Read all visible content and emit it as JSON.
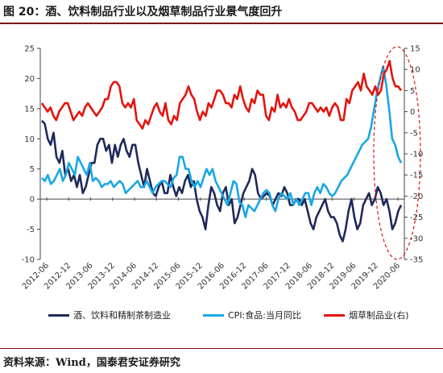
{
  "title": "图 20：酒、饮料制品行业以及烟草制品行业景气度回升",
  "source": "资料来源：Wind，国泰君安证券研究",
  "colors": {
    "accent": "#7a0f14",
    "series_navy": "#1f2a5a",
    "series_light_blue": "#19a7e3",
    "series_red": "#e3140e",
    "ellipse": "#d9161a"
  },
  "chart_data": {
    "type": "line",
    "title": "",
    "xlabel": "",
    "ylabel": "",
    "x_tick_labels": [
      "2012-06",
      "2012-12",
      "2013-06",
      "2013-12",
      "2014-06",
      "2014-12",
      "2015-06",
      "2015-12",
      "2016-06",
      "2016-12",
      "2017-06",
      "2017-12",
      "2018-06",
      "2018-12",
      "2019-06",
      "2019-12",
      "2020-06"
    ],
    "y_left_ticks": [
      "25",
      "20",
      "15",
      "10",
      "5",
      "0",
      "-5",
      "-10"
    ],
    "y_right_ticks": [
      "15",
      "10",
      "5",
      "0",
      "-5",
      "-10",
      "-15",
      "-20",
      "-25",
      "-30",
      "-35"
    ],
    "ylim_left": [
      -10,
      25
    ],
    "ylim_right": [
      -35,
      15
    ],
    "legend_position": "bottom",
    "annotation": "dashed red ellipse around 2019-12 to 2020-06",
    "series": [
      {
        "name": "酒、饮料和精制茶制造业",
        "axis": "left",
        "color": "#1f2a5a",
        "values": [
          13,
          12.5,
          10,
          9,
          11,
          7,
          6,
          8,
          4,
          5,
          3,
          4,
          2,
          4,
          1,
          2,
          4,
          6,
          6,
          9,
          10,
          10,
          8,
          9,
          6,
          9,
          7,
          9,
          10,
          8,
          7,
          9,
          9,
          6,
          4,
          2,
          5,
          3,
          1,
          0.5,
          2,
          3,
          1,
          1,
          4,
          2,
          0.5,
          2,
          1,
          3,
          4,
          2,
          3,
          0,
          -2,
          -3,
          -5,
          -1,
          2,
          1,
          -1,
          -2,
          1,
          2,
          -1,
          0,
          -4,
          -3,
          -1,
          1,
          2,
          3,
          5,
          4,
          1,
          0,
          0.5,
          1,
          0.5,
          -1,
          0,
          1,
          0.5,
          2,
          1,
          -1,
          -1,
          0,
          0,
          -1,
          0,
          -2,
          -4,
          -5,
          -3,
          -2,
          -1,
          0,
          -2,
          -3,
          -3,
          -4,
          -6,
          -7,
          -5,
          -2,
          0,
          -3,
          -5,
          -4,
          -1,
          0,
          1,
          -1,
          0,
          2,
          1,
          -1,
          0,
          -2,
          -5,
          -4,
          -2,
          -1
        ]
      },
      {
        "name": "CPI:食品:当月同比",
        "axis": "left",
        "color": "#19a7e3",
        "values": [
          3.5,
          3,
          4,
          2.5,
          3,
          4,
          5,
          3,
          4,
          6,
          5,
          4,
          7,
          6,
          5,
          4,
          6,
          3,
          3.5,
          3,
          2,
          2.5,
          2.5,
          3,
          2,
          2.5,
          3,
          2.5,
          1,
          1.5,
          2,
          2.5,
          3,
          2,
          2,
          3,
          2,
          1,
          2,
          2.5,
          3,
          3,
          2.5,
          2,
          3.5,
          4,
          7,
          7,
          5,
          5,
          3,
          2,
          3,
          2,
          3.5,
          5,
          4,
          5,
          3,
          2,
          1,
          0,
          -1,
          1,
          3,
          2.5,
          -0.5,
          -1,
          -3,
          -1,
          -1.5,
          -2,
          -1,
          0,
          1,
          1.5,
          1,
          -1,
          -2,
          0,
          1,
          0.5,
          0,
          1,
          -1,
          0,
          -1,
          0,
          1,
          1,
          -1,
          1,
          2,
          1,
          2.5,
          2,
          1,
          0.5,
          1,
          2,
          3,
          3.5,
          4,
          5,
          6,
          7,
          8,
          9,
          9.5,
          10,
          12,
          15,
          18,
          20,
          22,
          19,
          15,
          10,
          9,
          7,
          6
        ]
      },
      {
        "name": "烟草制品业(右)",
        "axis": "right",
        "color": "#e3140e",
        "values": [
          2,
          1,
          0,
          1,
          -1,
          -2,
          0,
          1,
          2,
          2,
          0,
          -2,
          -1,
          0,
          -1,
          1,
          2,
          1,
          0,
          -1,
          0,
          1,
          3,
          3,
          6,
          7,
          7,
          6,
          2,
          1,
          2,
          1,
          3,
          -2,
          -3,
          -4,
          -2,
          -3,
          -1,
          1,
          2,
          0,
          -1,
          2,
          -2,
          -3,
          -1,
          -2,
          2,
          3,
          4,
          6,
          4,
          3,
          0,
          -2,
          0,
          -1,
          2,
          1,
          3,
          5,
          5,
          4,
          2,
          2,
          1,
          4,
          3,
          6,
          3,
          1,
          0,
          3,
          2,
          5,
          4,
          4,
          -1,
          -2,
          1,
          0,
          4,
          1,
          2,
          1,
          3,
          1,
          0,
          -2,
          -2,
          -1,
          0,
          2,
          2,
          1,
          0,
          1,
          0,
          1,
          -1,
          1,
          2,
          1,
          -2,
          -2,
          3,
          2,
          5,
          6,
          7,
          5,
          9,
          6,
          5,
          4,
          6,
          4,
          5,
          9,
          10,
          12,
          8,
          6,
          6,
          5
        ]
      }
    ]
  }
}
